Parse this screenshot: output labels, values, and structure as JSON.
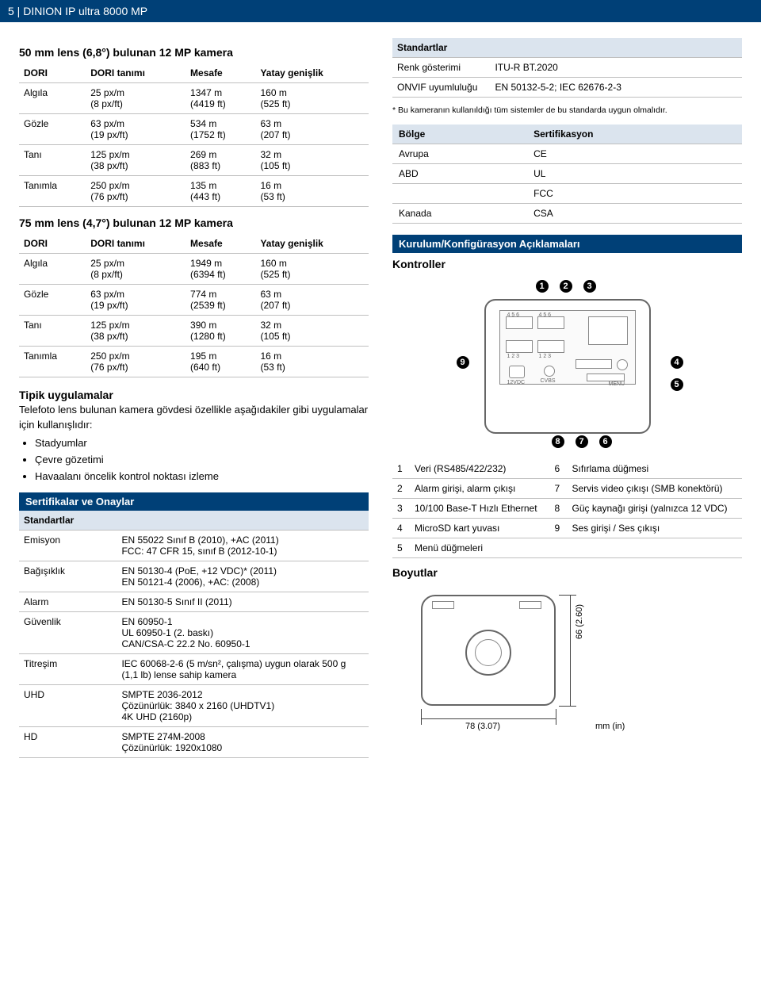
{
  "header": {
    "page_num": "5",
    "sep": " | ",
    "product": "DINION IP ultra 8000 MP"
  },
  "lens50": {
    "heading": "50 mm lens (6,8°) bulunan 12 MP kamera",
    "cols": [
      "DORI",
      "DORI tanımı",
      "Mesafe",
      "Yatay genişlik"
    ],
    "rows": [
      {
        "c0": "Algıla",
        "c1a": "25 px/m",
        "c1b": "(8 px/ft)",
        "c2a": "1347 m",
        "c2b": "(4419 ft)",
        "c3a": "160 m",
        "c3b": "(525 ft)"
      },
      {
        "c0": "Gözle",
        "c1a": "63 px/m",
        "c1b": "(19 px/ft)",
        "c2a": "534 m",
        "c2b": "(1752 ft)",
        "c3a": "63 m",
        "c3b": "(207 ft)"
      },
      {
        "c0": "Tanı",
        "c1a": "125 px/m",
        "c1b": "(38 px/ft)",
        "c2a": "269 m",
        "c2b": "(883 ft)",
        "c3a": "32 m",
        "c3b": "(105 ft)"
      },
      {
        "c0": "Tanımla",
        "c1a": "250 px/m",
        "c1b": "(76 px/ft)",
        "c2a": "135 m",
        "c2b": "(443 ft)",
        "c3a": "16 m",
        "c3b": "(53 ft)"
      }
    ]
  },
  "lens75": {
    "heading": "75 mm lens (4,7°) bulunan 12 MP kamera",
    "cols": [
      "DORI",
      "DORI tanımı",
      "Mesafe",
      "Yatay genişlik"
    ],
    "rows": [
      {
        "c0": "Algıla",
        "c1a": "25 px/m",
        "c1b": "(8 px/ft)",
        "c2a": "1949 m",
        "c2b": "(6394 ft)",
        "c3a": "160 m",
        "c3b": "(525 ft)"
      },
      {
        "c0": "Gözle",
        "c1a": "63 px/m",
        "c1b": "(19 px/ft)",
        "c2a": "774 m",
        "c2b": "(2539 ft)",
        "c3a": "63 m",
        "c3b": "(207 ft)"
      },
      {
        "c0": "Tanı",
        "c1a": "125 px/m",
        "c1b": "(38 px/ft)",
        "c2a": "390 m",
        "c2b": "(1280 ft)",
        "c3a": "32 m",
        "c3b": "(105 ft)"
      },
      {
        "c0": "Tanımla",
        "c1a": "250 px/m",
        "c1b": "(76 px/ft)",
        "c2a": "195 m",
        "c2b": "(640 ft)",
        "c3a": "16 m",
        "c3b": "(53 ft)"
      }
    ]
  },
  "apps": {
    "title": "Tipik uygulamalar",
    "text": "Telefoto lens bulunan kamera gövdesi özellikle aşağıdakiler gibi uygulamalar için kullanışlıdır:",
    "items": [
      "Stadyumlar",
      "Çevre gözetimi",
      "Havaalanı öncelik kontrol noktası izleme"
    ]
  },
  "certs_header": "Sertifikalar ve Onaylar",
  "standards_label": "Standartlar",
  "standards_rows": [
    {
      "k": "Emisyon",
      "v": "EN 55022 Sınıf B (2010), +AC (2011)\nFCC: 47 CFR 15, sınıf B (2012-10-1)"
    },
    {
      "k": "Bağışıklık",
      "v": "EN 50130-4 (PoE, +12 VDC)* (2011)\nEN 50121-4 (2006), +AC: (2008)"
    },
    {
      "k": "Alarm",
      "v": "EN 50130-5 Sınıf II (2011)"
    },
    {
      "k": "Güvenlik",
      "v": "EN 60950-1\nUL 60950-1 (2. baskı)\nCAN/CSA-C 22.2 No. 60950-1"
    },
    {
      "k": "Titreşim",
      "v": "IEC 60068-2-6 (5 m/sn², çalışma) uygun olarak 500 g (1,1 lb) lense sahip kamera"
    },
    {
      "k": "UHD",
      "v": "SMPTE 2036-2012\nÇözünürlük: 3840 x 2160 (UHDTV1)\n4K UHD (2160p)"
    },
    {
      "k": "HD",
      "v": "SMPTE 274M-2008\nÇözünürlük: 1920x1080"
    }
  ],
  "standards2_rows": [
    {
      "k": "Renk gösterimi",
      "v": "ITU-R BT.2020"
    },
    {
      "k": "ONVIF uyumluluğu",
      "v": "EN 50132-5-2; IEC 62676-2-3"
    }
  ],
  "standards2_footnote": "* Bu kameranın kullanıldığı tüm sistemler de bu standarda uygun olmalıdır.",
  "region_cols": [
    "Bölge",
    "Sertifikasyon"
  ],
  "region_rows": [
    {
      "k": "Avrupa",
      "v": "CE"
    },
    {
      "k": "ABD",
      "v": "UL"
    },
    {
      "k": "",
      "v": "FCC"
    },
    {
      "k": "Kanada",
      "v": "CSA"
    }
  ],
  "install_header": "Kurulum/Konfigürasyon Açıklamaları",
  "controllers_title": "Kontroller",
  "circle_labels": [
    "1",
    "2",
    "3",
    "4",
    "5",
    "6",
    "7",
    "8",
    "9"
  ],
  "callouts": [
    {
      "n": "1",
      "t": "Veri (RS485/422/232)",
      "n2": "6",
      "t2": "Sıfırlama düğmesi"
    },
    {
      "n": "2",
      "t": "Alarm girişi, alarm çıkışı",
      "n2": "7",
      "t2": "Servis video çıkışı (SMB konektörü)"
    },
    {
      "n": "3",
      "t": "10/100 Base-T Hızlı Ethernet",
      "n2": "8",
      "t2": "Güç kaynağı girişi (yalnızca 12 VDC)"
    },
    {
      "n": "4",
      "t": "MicroSD kart yuvası",
      "n2": "9",
      "t2": "Ses girişi / Ses çıkışı"
    },
    {
      "n": "5",
      "t": "Menü düğmeleri",
      "n2": "",
      "t2": ""
    }
  ],
  "dims_title": "Boyutlar",
  "dim_width": "78 (3.07)",
  "dim_height": "66 (2.60)",
  "dim_units": "mm (in)",
  "port_labels": {
    "a": "4 5 6",
    "b": "4 5 6",
    "c": "1 2 3",
    "d": "1 2 3",
    "dc": "12VDC",
    "cvbs": "CVBS",
    "menu": "MENU"
  }
}
